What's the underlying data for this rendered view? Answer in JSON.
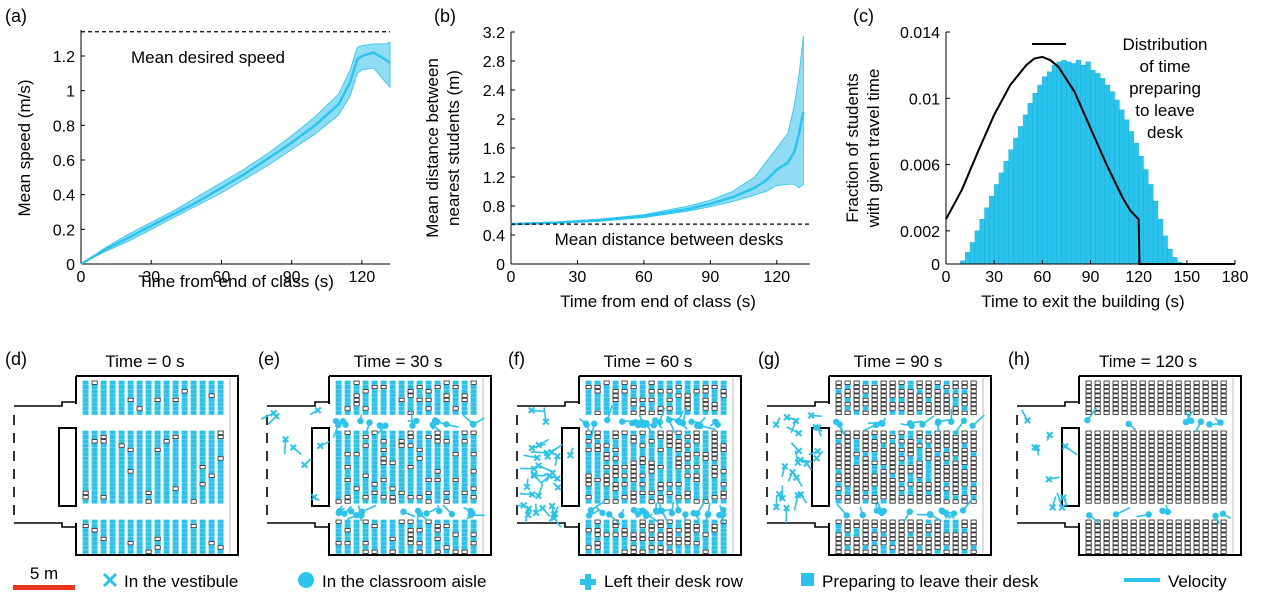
{
  "colors": {
    "cyan": "#29c3ec",
    "band": "#8fdcf4",
    "red": "#e8361c",
    "black": "#000000"
  },
  "chart_data": [
    {
      "panel": "(a)",
      "type": "line",
      "xlabel": "Time from end of class (s)",
      "ylabel": "Mean speed (m/s)",
      "xlim": [
        0,
        132
      ],
      "ylim": [
        0,
        1.35
      ],
      "xticks": [
        0,
        30,
        60,
        90,
        120
      ],
      "yticks": [
        0,
        0.2,
        0.4,
        0.6,
        0.8,
        1,
        1.2
      ],
      "reference": {
        "y": 1.34,
        "label": "Mean desired speed"
      },
      "series": [
        {
          "x": [
            0,
            10,
            20,
            30,
            40,
            50,
            60,
            70,
            80,
            90,
            100,
            110,
            115,
            118,
            120,
            125,
            130,
            132
          ],
          "mean": [
            0,
            0.08,
            0.15,
            0.22,
            0.29,
            0.36,
            0.44,
            0.52,
            0.61,
            0.7,
            0.8,
            0.92,
            1.05,
            1.18,
            1.2,
            1.22,
            1.18,
            1.16
          ],
          "upper": [
            0,
            0.09,
            0.17,
            0.24,
            0.31,
            0.39,
            0.47,
            0.55,
            0.64,
            0.74,
            0.85,
            0.98,
            1.12,
            1.25,
            1.26,
            1.27,
            1.27,
            1.28
          ],
          "lower": [
            0,
            0.07,
            0.13,
            0.2,
            0.27,
            0.34,
            0.41,
            0.49,
            0.57,
            0.66,
            0.75,
            0.86,
            0.97,
            1.1,
            1.12,
            1.13,
            1.05,
            1.02
          ]
        }
      ]
    },
    {
      "panel": "(b)",
      "type": "line",
      "xlabel": "Time from end of class (s)",
      "ylabel": "Mean distance between nearest students (m)",
      "ylabel_lines": [
        "Mean distance between",
        "nearest students (m)"
      ],
      "xlim": [
        0,
        135
      ],
      "ylim": [
        0,
        3.2
      ],
      "xticks": [
        0,
        30,
        60,
        90,
        120
      ],
      "yticks": [
        0,
        0.4,
        0.8,
        1.2,
        1.6,
        2,
        2.4,
        2.8,
        3.2
      ],
      "reference": {
        "y": 0.55,
        "label": "Mean distance between desks"
      },
      "series": [
        {
          "x": [
            0,
            20,
            40,
            60,
            80,
            90,
            100,
            110,
            115,
            120,
            125,
            128,
            130,
            132
          ],
          "mean": [
            0.55,
            0.57,
            0.6,
            0.66,
            0.76,
            0.83,
            0.92,
            1.05,
            1.15,
            1.3,
            1.4,
            1.55,
            1.8,
            2.1
          ],
          "upper": [
            0.56,
            0.58,
            0.62,
            0.68,
            0.8,
            0.88,
            1.0,
            1.2,
            1.4,
            1.6,
            1.8,
            2.2,
            2.6,
            3.15
          ],
          "lower": [
            0.54,
            0.56,
            0.59,
            0.64,
            0.73,
            0.79,
            0.86,
            0.95,
            1.0,
            1.08,
            1.1,
            1.1,
            1.05,
            1.1
          ]
        }
      ]
    },
    {
      "panel": "(c)",
      "type": "bar",
      "xlabel": "Time to exit the building (s)",
      "ylabel": "Fraction of students with given travel time",
      "ylabel_lines": [
        "Fraction of students",
        "with given travel time"
      ],
      "xlim": [
        0,
        180
      ],
      "ylim": [
        0,
        0.014
      ],
      "xticks": [
        0,
        30,
        60,
        90,
        120,
        150,
        180
      ],
      "yticks": [
        0,
        0.002,
        0.006,
        0.01,
        0.014
      ],
      "bin_width": 3,
      "bin_start": [
        9,
        12,
        15,
        18,
        21,
        24,
        27,
        30,
        33,
        36,
        39,
        42,
        45,
        48,
        51,
        54,
        57,
        60,
        63,
        66,
        69,
        72,
        75,
        78,
        81,
        84,
        87,
        90,
        93,
        96,
        99,
        102,
        105,
        108,
        111,
        114,
        117,
        120,
        123,
        126,
        129,
        132,
        135,
        138,
        141,
        144
      ],
      "values": [
        0.0002,
        0.0007,
        0.0013,
        0.002,
        0.0027,
        0.0034,
        0.0041,
        0.0048,
        0.0055,
        0.0062,
        0.0069,
        0.0076,
        0.0083,
        0.009,
        0.0097,
        0.0103,
        0.0108,
        0.0113,
        0.0116,
        0.012,
        0.0122,
        0.0123,
        0.0122,
        0.0121,
        0.0123,
        0.012,
        0.0122,
        0.0117,
        0.0115,
        0.0112,
        0.0108,
        0.0104,
        0.0099,
        0.0093,
        0.0087,
        0.008,
        0.0073,
        0.0065,
        0.0057,
        0.0048,
        0.0038,
        0.0027,
        0.0017,
        0.0009,
        0.0004,
        0.0001
      ],
      "line": {
        "name": "Distribution of time preparing to leave desk",
        "name_lines": [
          "Distribution",
          "of time",
          "preparing",
          "to leave",
          "desk"
        ],
        "x": [
          0,
          10,
          20,
          30,
          40,
          50,
          55,
          60,
          65,
          70,
          80,
          90,
          100,
          110,
          115,
          120,
          120.5,
          180
        ],
        "y": [
          0.0027,
          0.0045,
          0.0068,
          0.009,
          0.0108,
          0.012,
          0.0124,
          0.0125,
          0.0123,
          0.0119,
          0.0104,
          0.0082,
          0.006,
          0.004,
          0.0032,
          0.0027,
          0,
          0
        ]
      }
    }
  ],
  "snapshots": [
    {
      "panel": "(d)",
      "label": "Time = 0 s",
      "prep": 0.92,
      "aisle_agents": 0,
      "vestibule_agents": 0
    },
    {
      "panel": "(e)",
      "label": "Time = 30 s",
      "prep": 0.78,
      "aisle_agents": 34,
      "vestibule_agents": 8
    },
    {
      "panel": "(f)",
      "label": "Time = 60 s",
      "prep": 0.55,
      "aisle_agents": 50,
      "vestibule_agents": 30
    },
    {
      "panel": "(g)",
      "label": "Time = 90 s",
      "prep": 0.25,
      "aisle_agents": 26,
      "vestibule_agents": 22
    },
    {
      "panel": "(h)",
      "label": "Time = 120 s",
      "prep": 0.0,
      "aisle_agents": 14,
      "vestibule_agents": 9
    }
  ],
  "scalebar": {
    "label": "5 m"
  },
  "legend": [
    {
      "label": "In the vestibule",
      "marker": "x-icon"
    },
    {
      "label": "In the classroom aisle",
      "marker": "circle-icon"
    },
    {
      "label": "Left their desk row",
      "marker": "cross-icon"
    },
    {
      "label": "Preparing to leave their desk",
      "marker": "square-icon"
    },
    {
      "label": "Velocity",
      "marker": "line-icon"
    }
  ]
}
